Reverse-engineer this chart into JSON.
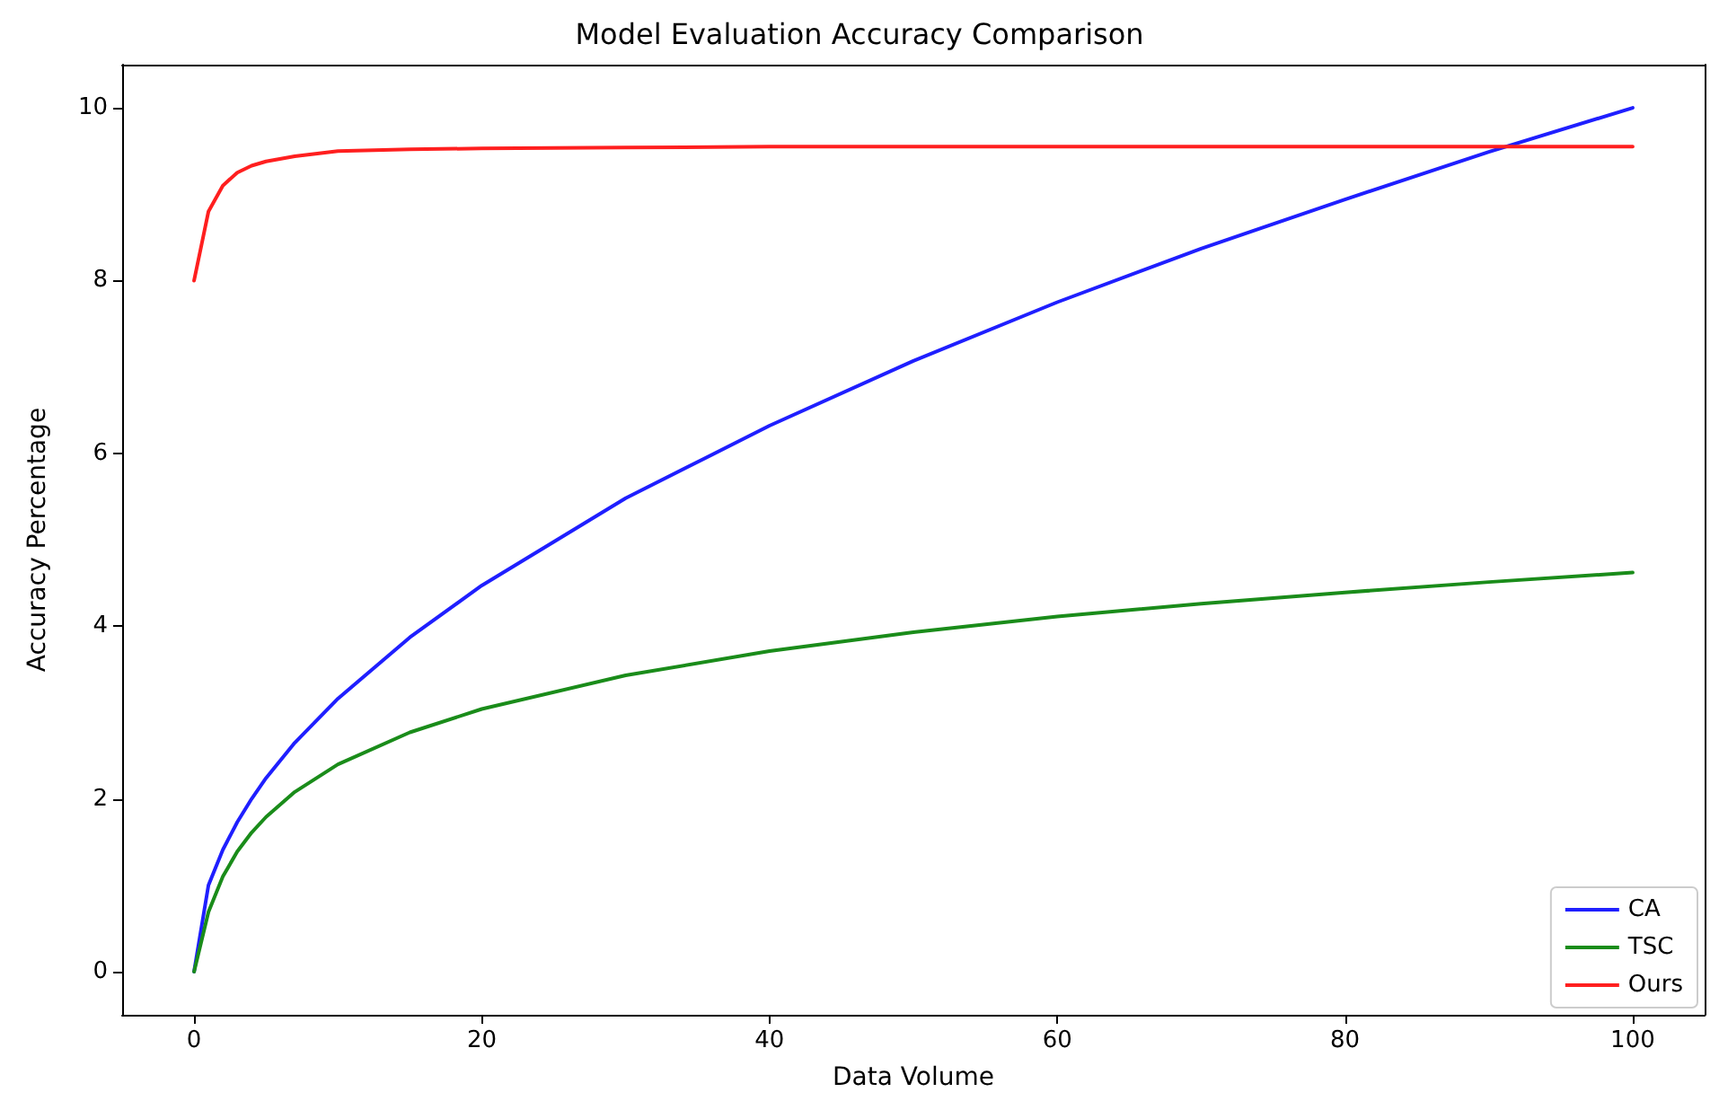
{
  "chart_data": {
    "type": "line",
    "title": "Model Evaluation Accuracy Comparison",
    "xlabel": "Data Volume",
    "ylabel": "Accuracy Percentage",
    "x": [
      0,
      1,
      2,
      3,
      4,
      5,
      7,
      10,
      15,
      20,
      30,
      40,
      50,
      60,
      70,
      80,
      90,
      100
    ],
    "series": [
      {
        "name": "CA",
        "color": "#1f1fff",
        "values": [
          0,
          1,
          1.41,
          1.73,
          2,
          2.24,
          2.65,
          3.16,
          3.87,
          4.47,
          5.48,
          6.32,
          7.07,
          7.75,
          8.37,
          8.94,
          9.49,
          10
        ]
      },
      {
        "name": "TSC",
        "color": "#1a8c1a",
        "values": [
          0,
          0.69,
          1.1,
          1.39,
          1.61,
          1.79,
          2.08,
          2.4,
          2.77,
          3.04,
          3.43,
          3.71,
          3.93,
          4.11,
          4.26,
          4.39,
          4.51,
          4.62
        ]
      },
      {
        "name": "Ours",
        "color": "#ff1f1f",
        "values": [
          8,
          8.8,
          9.1,
          9.25,
          9.33,
          9.38,
          9.44,
          9.5,
          9.52,
          9.53,
          9.54,
          9.55,
          9.55,
          9.55,
          9.55,
          9.55,
          9.55,
          9.55
        ]
      }
    ],
    "xlim": [
      -5,
      105
    ],
    "xticks": [
      0,
      20,
      40,
      60,
      80,
      100
    ],
    "ylim": [
      -0.5,
      10.5
    ],
    "yticks": [
      0,
      2,
      4,
      6,
      8,
      10
    ],
    "grid": false,
    "legend": "bottom right",
    "marker": "none",
    "line_style": "solid"
  }
}
